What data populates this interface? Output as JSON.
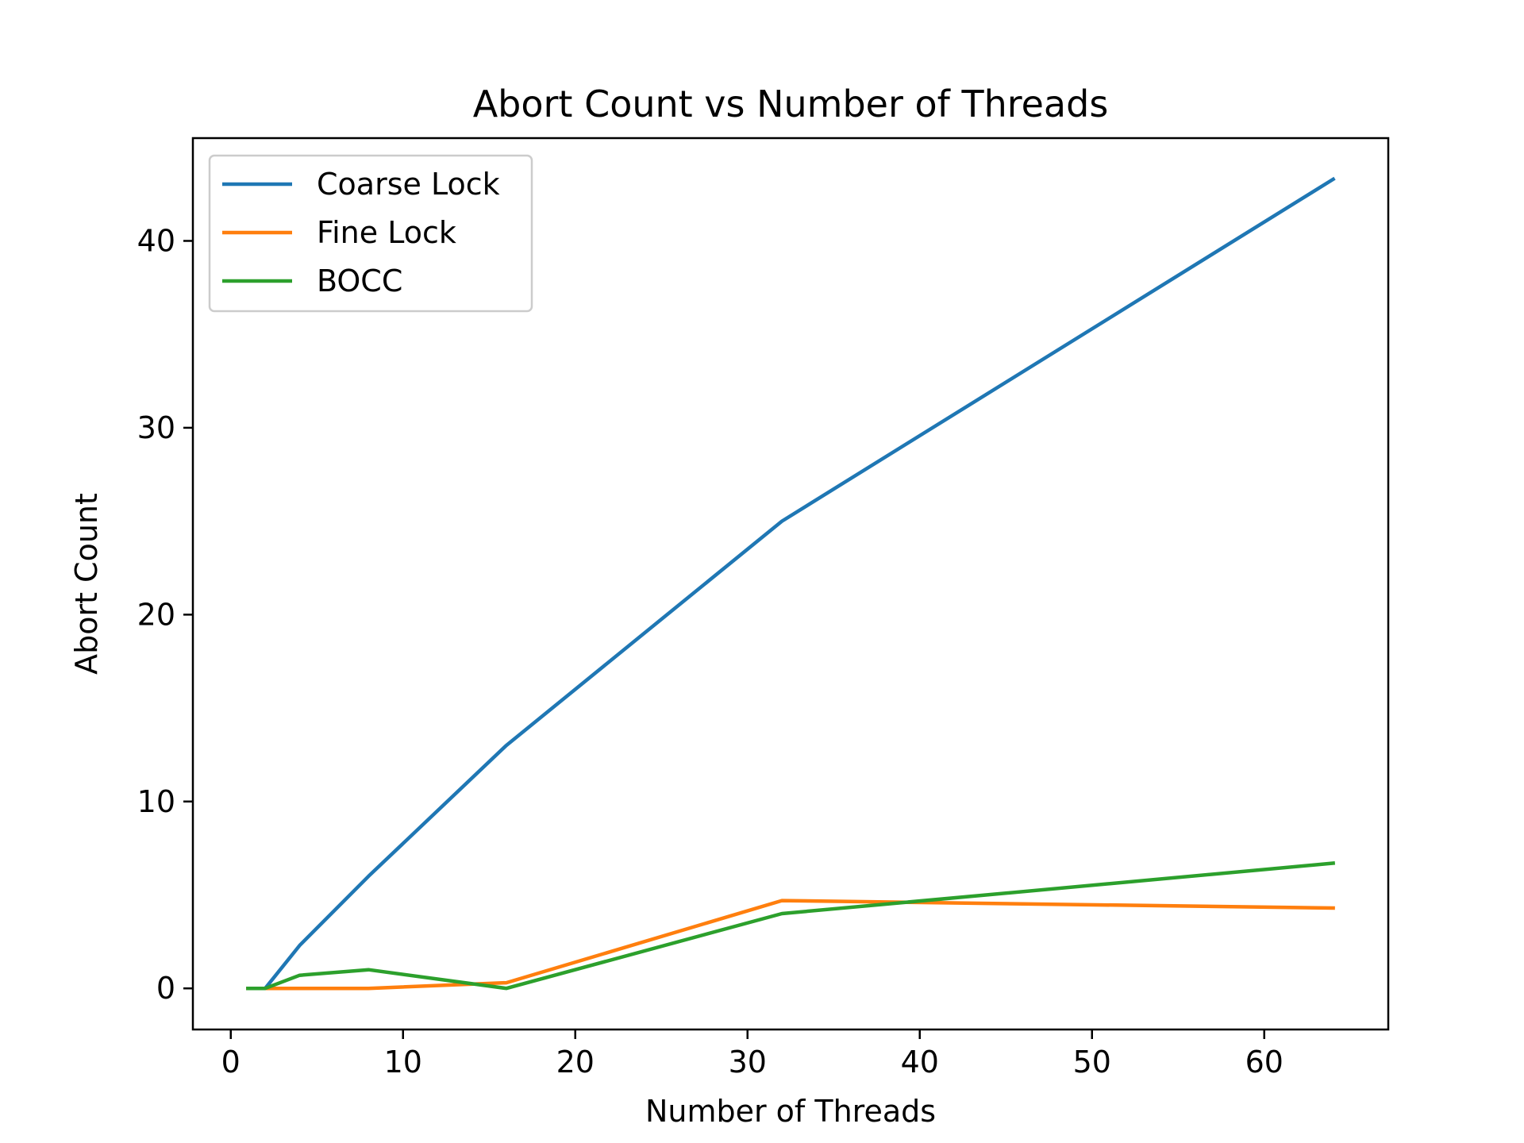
{
  "chart_data": {
    "type": "line",
    "title": "Abort Count vs Number of Threads",
    "xlabel": "Number of Threads",
    "ylabel": "Abort Count",
    "xlim": [
      -2.2,
      67.2
    ],
    "ylim": [
      -2.2,
      45.5
    ],
    "xticks": [
      0,
      10,
      20,
      30,
      40,
      50,
      60
    ],
    "yticks": [
      0,
      10,
      20,
      30,
      40
    ],
    "grid": false,
    "legend_position": "top-left",
    "series": [
      {
        "name": "Coarse Lock",
        "color": "#1f77b4",
        "x": [
          1,
          2,
          4,
          8,
          16,
          32,
          64
        ],
        "y": [
          0,
          0,
          2.3,
          6,
          13,
          25,
          43.3
        ]
      },
      {
        "name": "Fine Lock",
        "color": "#ff7f0e",
        "x": [
          1,
          2,
          4,
          8,
          16,
          32,
          64
        ],
        "y": [
          0,
          0,
          0,
          0,
          0.3,
          4.7,
          4.3
        ]
      },
      {
        "name": "BOCC",
        "color": "#2ca02c",
        "x": [
          1,
          2,
          4,
          8,
          16,
          32,
          64
        ],
        "y": [
          0,
          0,
          0.7,
          1,
          0,
          4,
          6.7
        ]
      }
    ]
  }
}
